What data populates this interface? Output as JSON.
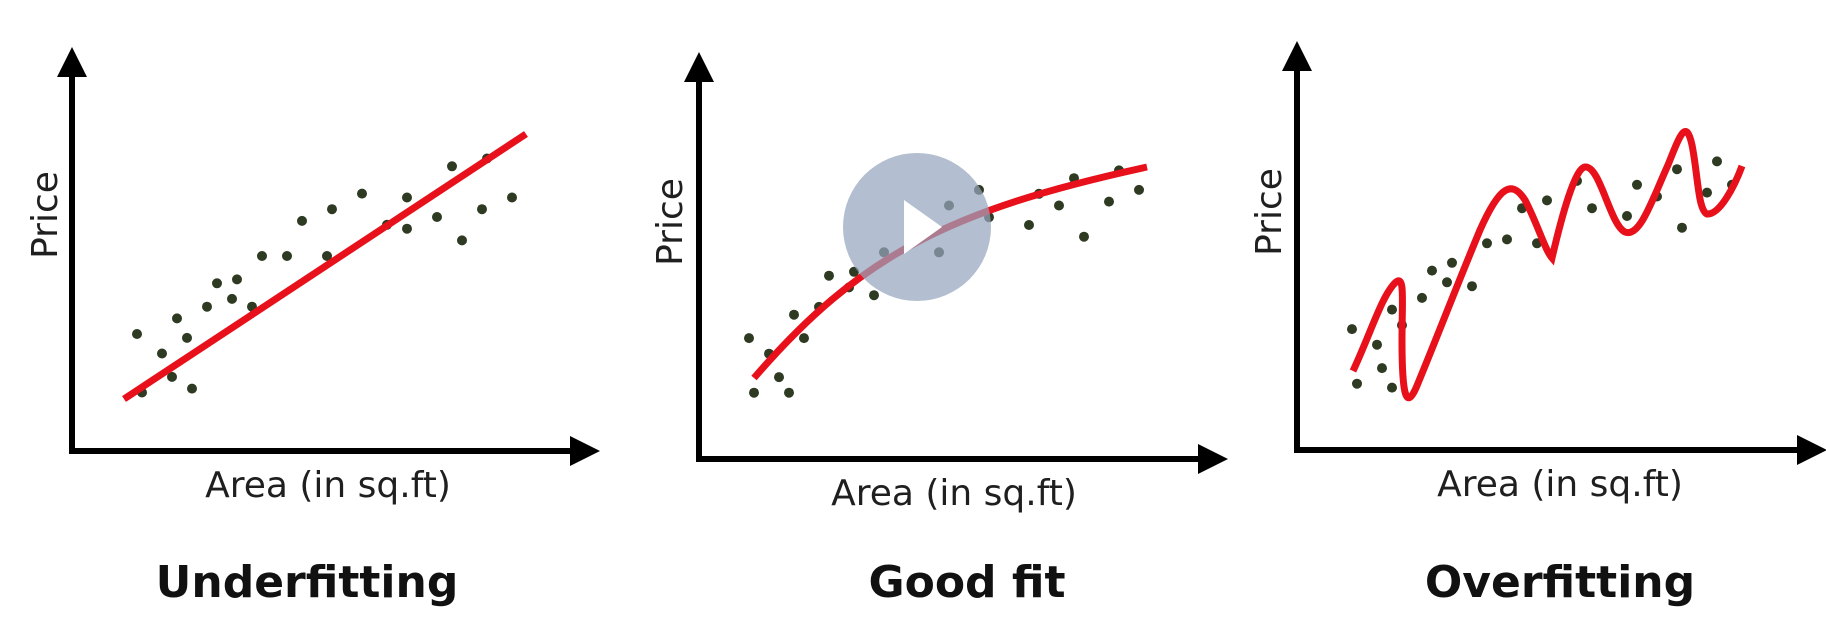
{
  "colors": {
    "axis": "#000000",
    "fit_line": "#e8101a",
    "points": "#2e3a22",
    "play_button": "#96a5be"
  },
  "panels": [
    {
      "caption": "Underfitting",
      "xlabel": "Area (in sq.ft)",
      "ylabel": "Price",
      "fit": "linear",
      "points": [
        [
          0.13,
          0.3
        ],
        [
          0.14,
          0.15
        ],
        [
          0.18,
          0.25
        ],
        [
          0.2,
          0.19
        ],
        [
          0.21,
          0.34
        ],
        [
          0.23,
          0.29
        ],
        [
          0.24,
          0.16
        ],
        [
          0.27,
          0.37
        ],
        [
          0.29,
          0.43
        ],
        [
          0.32,
          0.39
        ],
        [
          0.33,
          0.44
        ],
        [
          0.36,
          0.37
        ],
        [
          0.38,
          0.5
        ],
        [
          0.43,
          0.5
        ],
        [
          0.46,
          0.59
        ],
        [
          0.51,
          0.5
        ],
        [
          0.52,
          0.62
        ],
        [
          0.58,
          0.66
        ],
        [
          0.63,
          0.58
        ],
        [
          0.67,
          0.57
        ],
        [
          0.67,
          0.65
        ],
        [
          0.73,
          0.6
        ],
        [
          0.76,
          0.73
        ],
        [
          0.78,
          0.54
        ],
        [
          0.82,
          0.62
        ],
        [
          0.83,
          0.75
        ],
        [
          0.88,
          0.65
        ]
      ]
    },
    {
      "caption": "Good fit",
      "xlabel": "Area (in sq.ft)",
      "ylabel": "Price",
      "fit": "curve",
      "points": [
        [
          0.1,
          0.31
        ],
        [
          0.11,
          0.17
        ],
        [
          0.14,
          0.27
        ],
        [
          0.16,
          0.21
        ],
        [
          0.18,
          0.17
        ],
        [
          0.19,
          0.37
        ],
        [
          0.21,
          0.31
        ],
        [
          0.24,
          0.39
        ],
        [
          0.26,
          0.47
        ],
        [
          0.3,
          0.44
        ],
        [
          0.31,
          0.48
        ],
        [
          0.35,
          0.42
        ],
        [
          0.37,
          0.53
        ],
        [
          0.42,
          0.55
        ],
        [
          0.44,
          0.62
        ],
        [
          0.48,
          0.53
        ],
        [
          0.5,
          0.65
        ],
        [
          0.56,
          0.69
        ],
        [
          0.58,
          0.62
        ],
        [
          0.66,
          0.6
        ],
        [
          0.68,
          0.68
        ],
        [
          0.72,
          0.65
        ],
        [
          0.75,
          0.72
        ],
        [
          0.77,
          0.57
        ],
        [
          0.82,
          0.66
        ],
        [
          0.84,
          0.74
        ],
        [
          0.88,
          0.69
        ]
      ]
    },
    {
      "caption": "Overfitting",
      "xlabel": "Area (in sq.ft)",
      "ylabel": "Price",
      "fit": "wiggly",
      "points": [
        [
          0.11,
          0.31
        ],
        [
          0.12,
          0.17
        ],
        [
          0.16,
          0.27
        ],
        [
          0.17,
          0.21
        ],
        [
          0.19,
          0.16
        ],
        [
          0.19,
          0.36
        ],
        [
          0.21,
          0.32
        ],
        [
          0.25,
          0.39
        ],
        [
          0.27,
          0.46
        ],
        [
          0.3,
          0.43
        ],
        [
          0.31,
          0.48
        ],
        [
          0.35,
          0.42
        ],
        [
          0.38,
          0.53
        ],
        [
          0.42,
          0.54
        ],
        [
          0.45,
          0.62
        ],
        [
          0.48,
          0.53
        ],
        [
          0.5,
          0.64
        ],
        [
          0.56,
          0.69
        ],
        [
          0.59,
          0.62
        ],
        [
          0.66,
          0.6
        ],
        [
          0.68,
          0.68
        ],
        [
          0.72,
          0.65
        ],
        [
          0.76,
          0.72
        ],
        [
          0.77,
          0.57
        ],
        [
          0.82,
          0.66
        ],
        [
          0.84,
          0.74
        ],
        [
          0.87,
          0.68
        ]
      ]
    }
  ],
  "play_button_label": "Play video"
}
